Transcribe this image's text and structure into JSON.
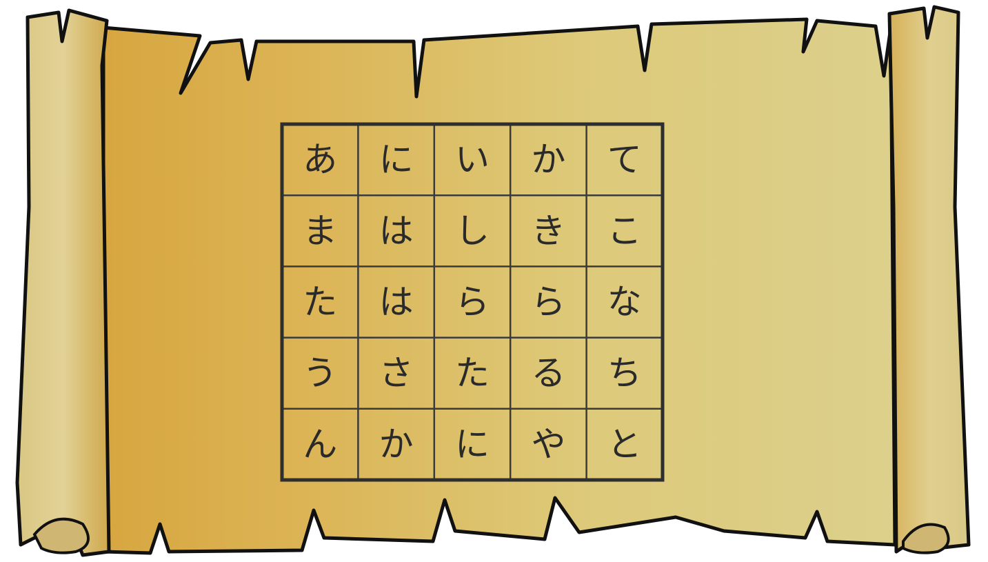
{
  "grid": {
    "rows": [
      [
        "あ",
        "に",
        "い",
        "か",
        "て"
      ],
      [
        "ま",
        "は",
        "し",
        "き",
        "こ"
      ],
      [
        "た",
        "は",
        "ら",
        "ら",
        "な"
      ],
      [
        "う",
        "さ",
        "た",
        "る",
        "ち"
      ],
      [
        "ん",
        "か",
        "に",
        "や",
        "と"
      ]
    ]
  }
}
